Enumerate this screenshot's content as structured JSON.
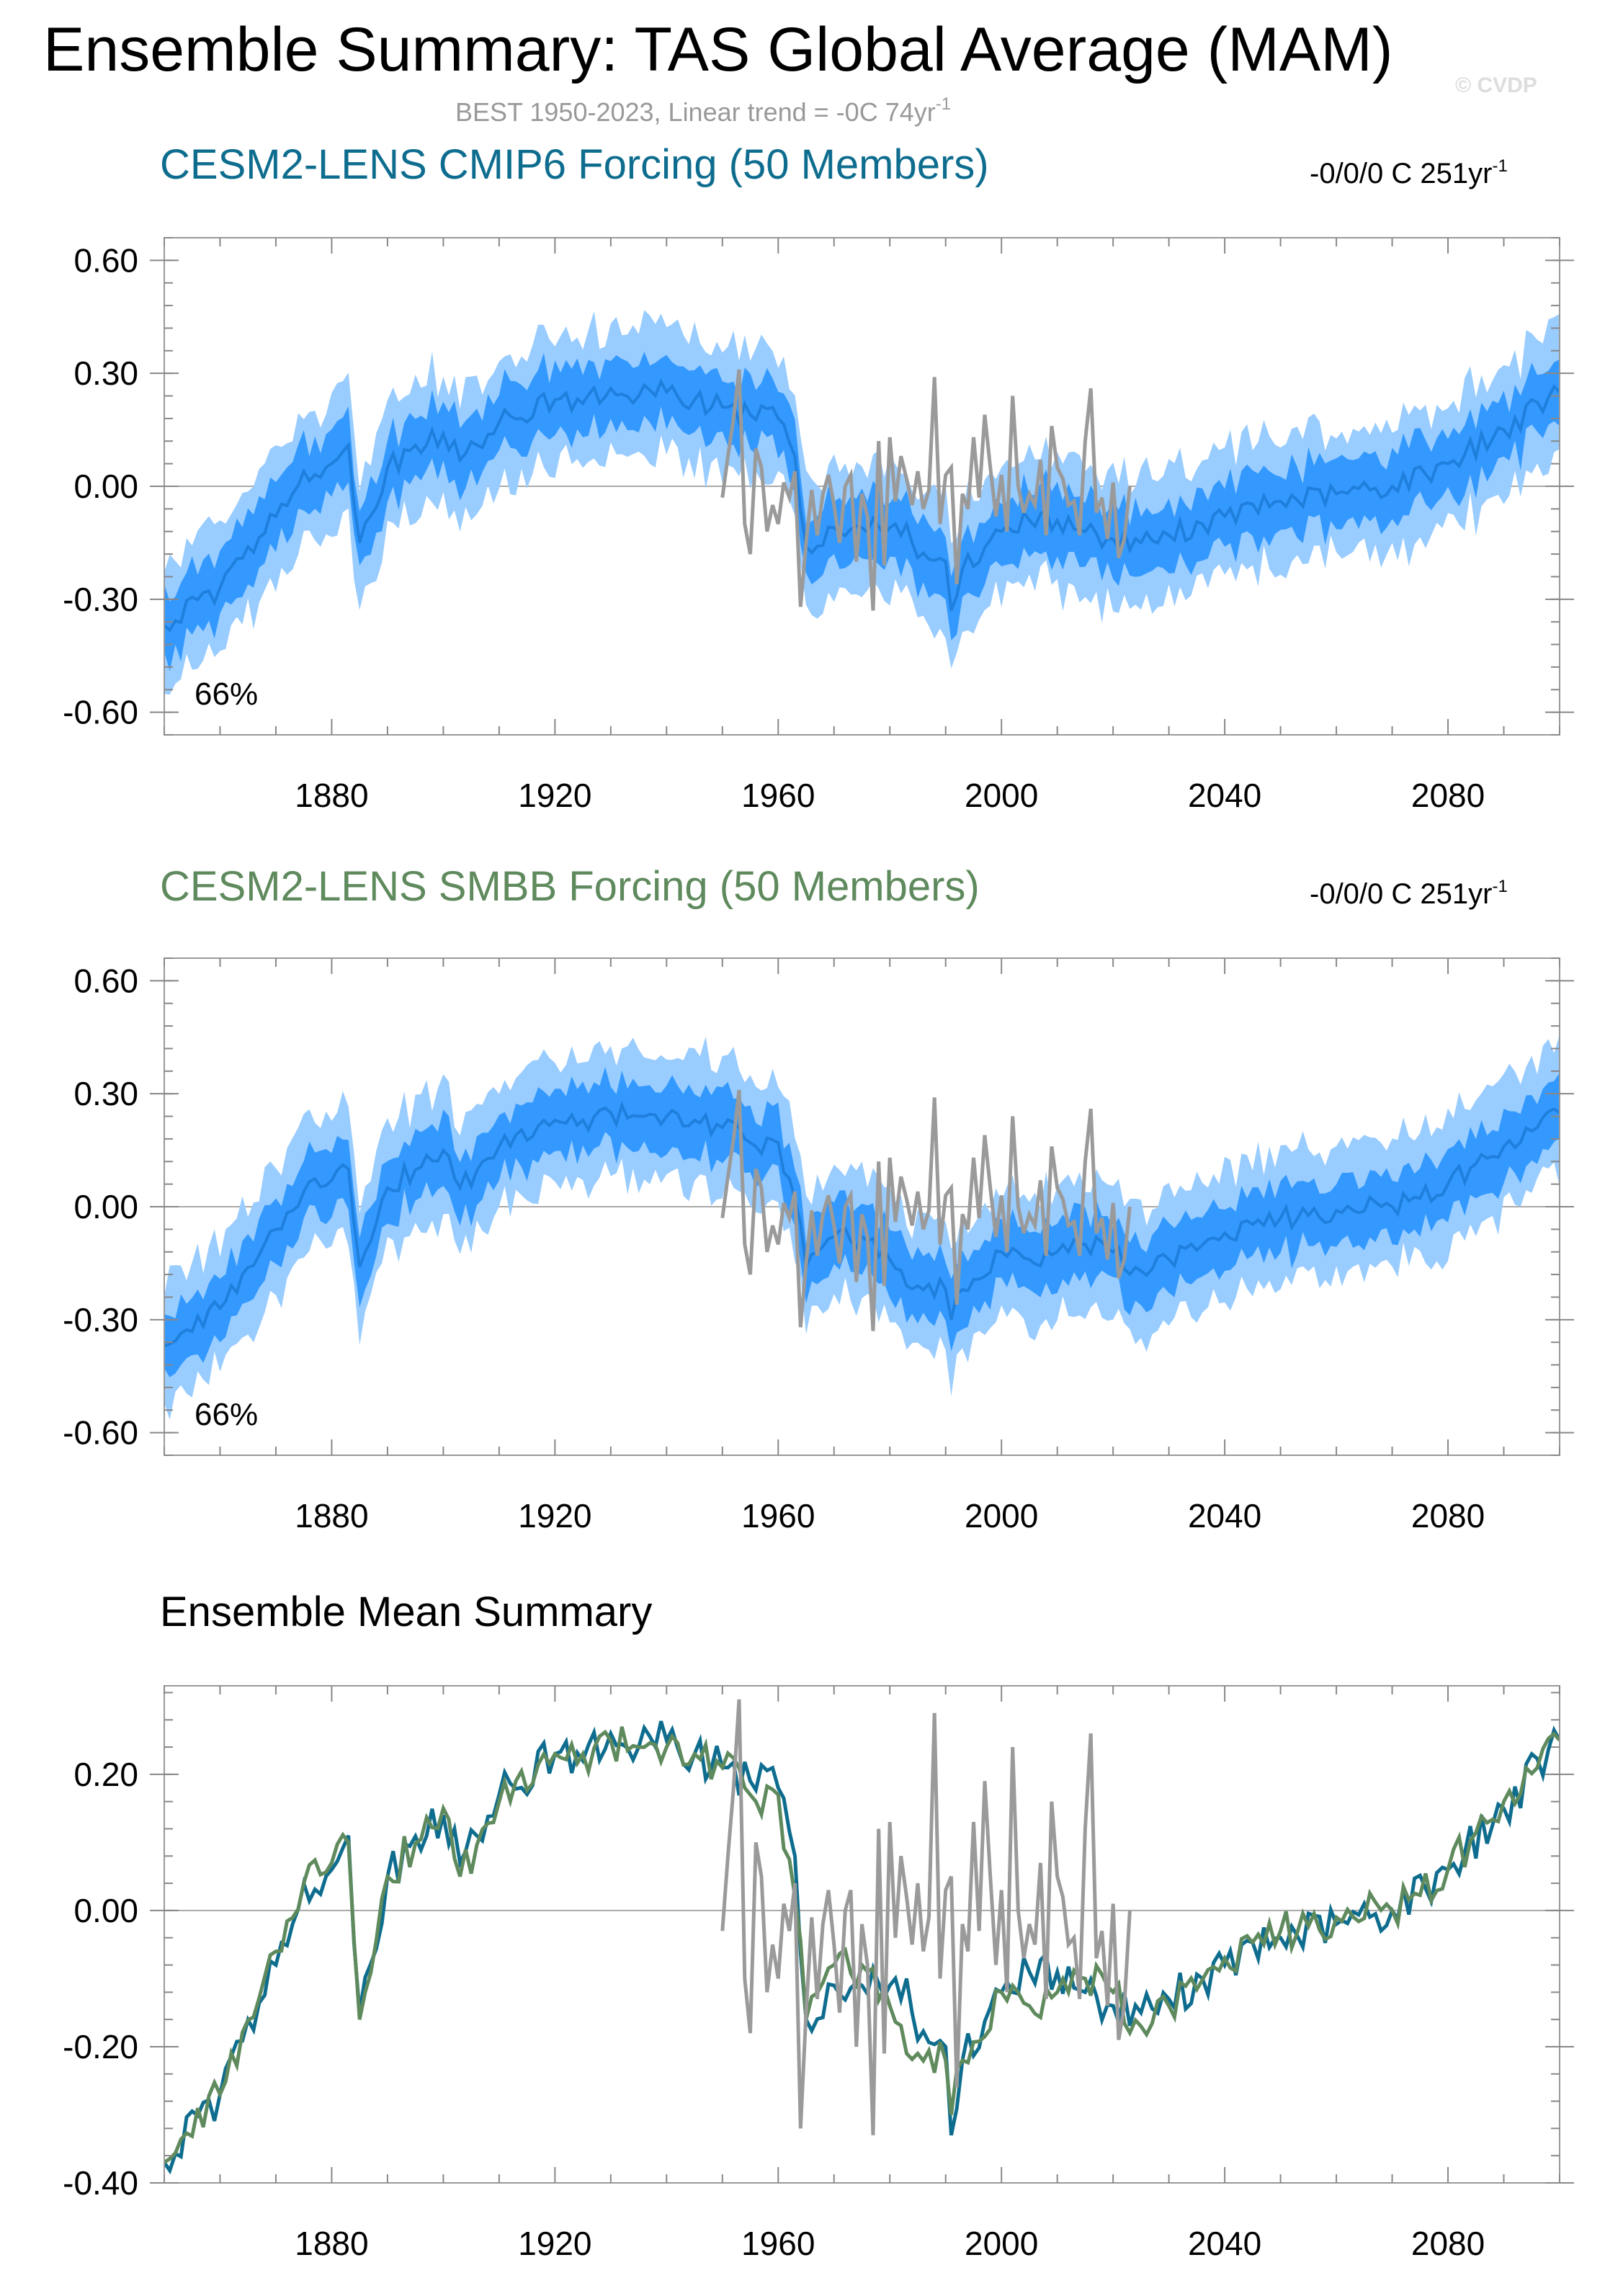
{
  "header": {
    "title": "Ensemble Summary: TAS Global Average (MAM)",
    "subtitle_main": "BEST 1950-2023, Linear trend = -0C 74yr",
    "subtitle_sup": "-1",
    "watermark": "© CVDP"
  },
  "colors": {
    "cmip6": "#0e6d8f",
    "smbb": "#5f8a5d",
    "obs": "#9a9a9a",
    "band_outer": "#99ccff",
    "band_inner": "#3399ff",
    "ens_mean": "#1f7fdc"
  },
  "panels": [
    {
      "title": "CESM2-LENS CMIP6 Forcing (50 Members)",
      "trend_main": "-0/0/0 C 251yr",
      "trend_sup": "-1",
      "label": "66%"
    },
    {
      "title": "CESM2-LENS SMBB Forcing (50 Members)",
      "trend_main": "-0/0/0 C 251yr",
      "trend_sup": "-1",
      "label": "66%"
    },
    {
      "title": "Ensemble Mean Summary"
    }
  ],
  "chart_data": [
    {
      "type": "area",
      "title": "CESM2-LENS CMIP6 Forcing (50 Members)",
      "xlim": [
        1850,
        2100
      ],
      "ylim": [
        -0.66,
        0.66
      ],
      "x_ticks": [
        1880,
        1920,
        1960,
        2000,
        2040,
        2080
      ],
      "x_tick_labels": [
        "1880",
        "1920",
        "1960",
        "2000",
        "2040",
        "2080"
      ],
      "y_ticks": [
        -0.6,
        -0.3,
        0.0,
        0.3,
        0.6
      ],
      "y_tick_labels": [
        "-0.60",
        "-0.30",
        "0.00",
        "0.30",
        "0.60"
      ],
      "annotation": "66%",
      "series": [
        {
          "name": "CESM2-LENS CMIP6 ensemble mean",
          "x": [
            1850,
            1860,
            1870,
            1875,
            1880,
            1883,
            1885,
            1890,
            1900,
            1903,
            1910,
            1920,
            1925,
            1930,
            1935,
            1940,
            1945,
            1950,
            1955,
            1960,
            1963,
            1965,
            1970,
            1975,
            1980,
            1983,
            1985,
            1990,
            1991,
            1993,
            2000,
            2005,
            2010,
            2015,
            2020,
            2025,
            2030,
            2040,
            2050,
            2060,
            2070,
            2080,
            2090,
            2100
          ],
          "y": [
            -0.37,
            -0.27,
            -0.08,
            0.04,
            0.06,
            0.11,
            -0.15,
            0.05,
            0.14,
            0.07,
            0.17,
            0.23,
            0.22,
            0.26,
            0.24,
            0.25,
            0.23,
            0.21,
            0.19,
            0.18,
            0.08,
            -0.16,
            -0.11,
            -0.11,
            -0.11,
            -0.1,
            -0.19,
            -0.2,
            -0.33,
            -0.22,
            -0.12,
            -0.09,
            -0.09,
            -0.12,
            -0.14,
            -0.15,
            -0.13,
            -0.08,
            -0.04,
            -0.02,
            0.0,
            0.06,
            0.15,
            0.25
          ]
        },
        {
          "name": "BEST observations",
          "x": [
            1950,
            1951,
            1952,
            1953,
            1954,
            1955,
            1956,
            1957,
            1958,
            1959,
            1960,
            1961,
            1962,
            1963,
            1964,
            1965,
            1966,
            1967,
            1968,
            1969,
            1970,
            1971,
            1972,
            1973,
            1974,
            1975,
            1976,
            1977,
            1978,
            1979,
            1980,
            1981,
            1982,
            1983,
            1984,
            1985,
            1986,
            1987,
            1988,
            1989,
            1990,
            1991,
            1992,
            1993,
            1994,
            1995,
            1996,
            1997,
            1998,
            1999,
            2000,
            2001,
            2002,
            2003,
            2004,
            2005,
            2006,
            2007,
            2008,
            2009,
            2010,
            2011,
            2012,
            2013,
            2014,
            2015,
            2016,
            2017,
            2018,
            2019,
            2020,
            2021,
            2022,
            2023
          ],
          "y": [
            -0.03,
            0.08,
            0.18,
            0.31,
            -0.1,
            -0.18,
            0.1,
            0.05,
            -0.12,
            -0.05,
            -0.1,
            0.01,
            -0.03,
            0.04,
            -0.32,
            -0.15,
            -0.01,
            -0.13,
            -0.02,
            0.03,
            -0.05,
            -0.15,
            0.0,
            0.03,
            -0.2,
            -0.02,
            -0.08,
            -0.33,
            0.12,
            -0.21,
            0.13,
            -0.04,
            0.08,
            0.02,
            -0.05,
            0.04,
            -0.06,
            -0.01,
            0.29,
            -0.1,
            0.03,
            0.05,
            -0.26,
            -0.02,
            -0.06,
            0.13,
            -0.03,
            0.19,
            0.05,
            -0.08,
            0.03,
            -0.12,
            0.24,
            0.0,
            -0.07,
            -0.02,
            -0.05,
            0.07,
            -0.13,
            0.16,
            0.05,
            0.02,
            -0.05,
            -0.04,
            -0.13,
            0.12,
            0.26,
            -0.07,
            -0.03,
            -0.14,
            0.01,
            -0.19,
            -0.14,
            0.0
          ]
        }
      ]
    },
    {
      "type": "area",
      "title": "CESM2-LENS SMBB Forcing (50 Members)",
      "xlim": [
        1850,
        2100
      ],
      "ylim": [
        -0.66,
        0.66
      ],
      "x_ticks": [
        1880,
        1920,
        1960,
        2000,
        2040,
        2080
      ],
      "x_tick_labels": [
        "1880",
        "1920",
        "1960",
        "2000",
        "2040",
        "2080"
      ],
      "y_ticks": [
        -0.6,
        -0.3,
        0.0,
        0.3,
        0.6
      ],
      "y_tick_labels": [
        "-0.60",
        "-0.30",
        "0.00",
        "0.30",
        "0.60"
      ],
      "annotation": "66%",
      "series": [
        {
          "name": "CESM2-LENS SMBB ensemble mean",
          "x": [
            1850,
            1860,
            1870,
            1875,
            1880,
            1883,
            1885,
            1890,
            1900,
            1903,
            1910,
            1920,
            1925,
            1930,
            1935,
            1940,
            1945,
            1950,
            1955,
            1960,
            1963,
            1965,
            1970,
            1975,
            1980,
            1983,
            1985,
            1990,
            1991,
            1993,
            2000,
            2005,
            2010,
            2015,
            2020,
            2025,
            2030,
            2040,
            2050,
            2060,
            2070,
            2080,
            2090,
            2100
          ],
          "y": [
            -0.37,
            -0.27,
            -0.06,
            0.04,
            0.07,
            0.1,
            -0.16,
            0.05,
            0.15,
            0.05,
            0.16,
            0.23,
            0.23,
            0.25,
            0.24,
            0.24,
            0.23,
            0.21,
            0.17,
            0.17,
            0.02,
            -0.16,
            -0.08,
            -0.08,
            -0.14,
            -0.21,
            -0.21,
            -0.22,
            -0.3,
            -0.22,
            -0.12,
            -0.14,
            -0.12,
            -0.1,
            -0.12,
            -0.17,
            -0.14,
            -0.07,
            -0.03,
            -0.01,
            0.0,
            0.06,
            0.16,
            0.25
          ]
        },
        {
          "name": "BEST observations",
          "x": [
            1950,
            1951,
            1952,
            1953,
            1954,
            1955,
            1956,
            1957,
            1958,
            1959,
            1960,
            1961,
            1962,
            1963,
            1964,
            1965,
            1966,
            1967,
            1968,
            1969,
            1970,
            1971,
            1972,
            1973,
            1974,
            1975,
            1976,
            1977,
            1978,
            1979,
            1980,
            1981,
            1982,
            1983,
            1984,
            1985,
            1986,
            1987,
            1988,
            1989,
            1990,
            1991,
            1992,
            1993,
            1994,
            1995,
            1996,
            1997,
            1998,
            1999,
            2000,
            2001,
            2002,
            2003,
            2004,
            2005,
            2006,
            2007,
            2008,
            2009,
            2010,
            2011,
            2012,
            2013,
            2014,
            2015,
            2016,
            2017,
            2018,
            2019,
            2020,
            2021,
            2022,
            2023
          ],
          "y": [
            -0.03,
            0.08,
            0.18,
            0.31,
            -0.1,
            -0.18,
            0.1,
            0.05,
            -0.12,
            -0.05,
            -0.1,
            0.01,
            -0.03,
            0.04,
            -0.32,
            -0.15,
            -0.01,
            -0.13,
            -0.02,
            0.03,
            -0.05,
            -0.15,
            0.0,
            0.03,
            -0.2,
            -0.02,
            -0.08,
            -0.33,
            0.12,
            -0.21,
            0.13,
            -0.04,
            0.08,
            0.02,
            -0.05,
            0.04,
            -0.06,
            -0.01,
            0.29,
            -0.1,
            0.03,
            0.05,
            -0.26,
            -0.02,
            -0.06,
            0.13,
            -0.03,
            0.19,
            0.05,
            -0.08,
            0.03,
            -0.12,
            0.24,
            0.0,
            -0.07,
            -0.02,
            -0.05,
            0.07,
            -0.13,
            0.16,
            0.05,
            0.02,
            -0.05,
            -0.04,
            -0.13,
            0.12,
            0.26,
            -0.07,
            -0.03,
            -0.14,
            0.01,
            -0.19,
            -0.14,
            0.0
          ]
        }
      ]
    },
    {
      "type": "line",
      "title": "Ensemble Mean Summary",
      "xlim": [
        1850,
        2100
      ],
      "ylim": [
        -0.4,
        0.33
      ],
      "x_ticks": [
        1880,
        1920,
        1960,
        2000,
        2040,
        2080
      ],
      "x_tick_labels": [
        "1880",
        "1920",
        "1960",
        "2000",
        "2040",
        "2080"
      ],
      "y_ticks": [
        -0.4,
        -0.2,
        0.0,
        0.2
      ],
      "y_tick_labels": [
        "-0.40",
        "-0.20",
        "0.00",
        "0.20"
      ],
      "series": [
        {
          "name": "CESM2-LENS CMIP6 ensemble mean",
          "x": [
            1850,
            1860,
            1870,
            1875,
            1880,
            1883,
            1885,
            1890,
            1900,
            1903,
            1910,
            1920,
            1925,
            1930,
            1935,
            1940,
            1945,
            1950,
            1955,
            1960,
            1963,
            1965,
            1970,
            1975,
            1980,
            1983,
            1985,
            1990,
            1991,
            1993,
            2000,
            2005,
            2010,
            2015,
            2020,
            2025,
            2030,
            2040,
            2050,
            2060,
            2070,
            2080,
            2090,
            2100
          ],
          "y": [
            -0.37,
            -0.27,
            -0.08,
            0.04,
            0.06,
            0.11,
            -0.15,
            0.05,
            0.14,
            0.07,
            0.17,
            0.23,
            0.22,
            0.26,
            0.24,
            0.25,
            0.23,
            0.21,
            0.19,
            0.18,
            0.08,
            -0.16,
            -0.11,
            -0.11,
            -0.11,
            -0.1,
            -0.19,
            -0.2,
            -0.33,
            -0.22,
            -0.12,
            -0.09,
            -0.09,
            -0.12,
            -0.14,
            -0.15,
            -0.13,
            -0.08,
            -0.04,
            -0.02,
            0.0,
            0.06,
            0.15,
            0.25
          ]
        },
        {
          "name": "CESM2-LENS SMBB ensemble mean",
          "x": [
            1850,
            1860,
            1870,
            1875,
            1880,
            1883,
            1885,
            1890,
            1900,
            1903,
            1910,
            1920,
            1925,
            1930,
            1935,
            1940,
            1945,
            1950,
            1955,
            1960,
            1963,
            1965,
            1970,
            1975,
            1980,
            1983,
            1985,
            1990,
            1991,
            1993,
            2000,
            2005,
            2010,
            2015,
            2020,
            2025,
            2030,
            2040,
            2050,
            2060,
            2070,
            2080,
            2090,
            2100
          ],
          "y": [
            -0.37,
            -0.27,
            -0.06,
            0.04,
            0.07,
            0.1,
            -0.16,
            0.05,
            0.15,
            0.05,
            0.16,
            0.23,
            0.23,
            0.25,
            0.24,
            0.24,
            0.23,
            0.21,
            0.17,
            0.17,
            0.02,
            -0.16,
            -0.08,
            -0.08,
            -0.14,
            -0.21,
            -0.21,
            -0.22,
            -0.3,
            -0.22,
            -0.12,
            -0.14,
            -0.12,
            -0.1,
            -0.12,
            -0.17,
            -0.14,
            -0.07,
            -0.03,
            -0.01,
            0.0,
            0.06,
            0.16,
            0.25
          ]
        },
        {
          "name": "BEST observations",
          "x": [
            1950,
            1951,
            1952,
            1953,
            1954,
            1955,
            1956,
            1957,
            1958,
            1959,
            1960,
            1961,
            1962,
            1963,
            1964,
            1965,
            1966,
            1967,
            1968,
            1969,
            1970,
            1971,
            1972,
            1973,
            1974,
            1975,
            1976,
            1977,
            1978,
            1979,
            1980,
            1981,
            1982,
            1983,
            1984,
            1985,
            1986,
            1987,
            1988,
            1989,
            1990,
            1991,
            1992,
            1993,
            1994,
            1995,
            1996,
            1997,
            1998,
            1999,
            2000,
            2001,
            2002,
            2003,
            2004,
            2005,
            2006,
            2007,
            2008,
            2009,
            2010,
            2011,
            2012,
            2013,
            2014,
            2015,
            2016,
            2017,
            2018,
            2019,
            2020,
            2021,
            2022,
            2023
          ],
          "y": [
            -0.03,
            0.08,
            0.18,
            0.31,
            -0.1,
            -0.18,
            0.1,
            0.05,
            -0.12,
            -0.05,
            -0.1,
            0.01,
            -0.03,
            0.04,
            -0.32,
            -0.15,
            -0.01,
            -0.13,
            -0.02,
            0.03,
            -0.05,
            -0.15,
            0.0,
            0.03,
            -0.2,
            -0.02,
            -0.08,
            -0.33,
            0.12,
            -0.21,
            0.13,
            -0.04,
            0.08,
            0.02,
            -0.05,
            0.04,
            -0.06,
            -0.01,
            0.29,
            -0.1,
            0.03,
            0.05,
            -0.26,
            -0.02,
            -0.06,
            0.13,
            -0.03,
            0.19,
            0.05,
            -0.08,
            0.03,
            -0.12,
            0.24,
            0.0,
            -0.07,
            -0.02,
            -0.05,
            0.07,
            -0.13,
            0.16,
            0.05,
            0.02,
            -0.05,
            -0.04,
            -0.13,
            0.12,
            0.26,
            -0.07,
            -0.03,
            -0.14,
            0.01,
            -0.19,
            -0.14,
            0.0
          ]
        }
      ]
    }
  ]
}
